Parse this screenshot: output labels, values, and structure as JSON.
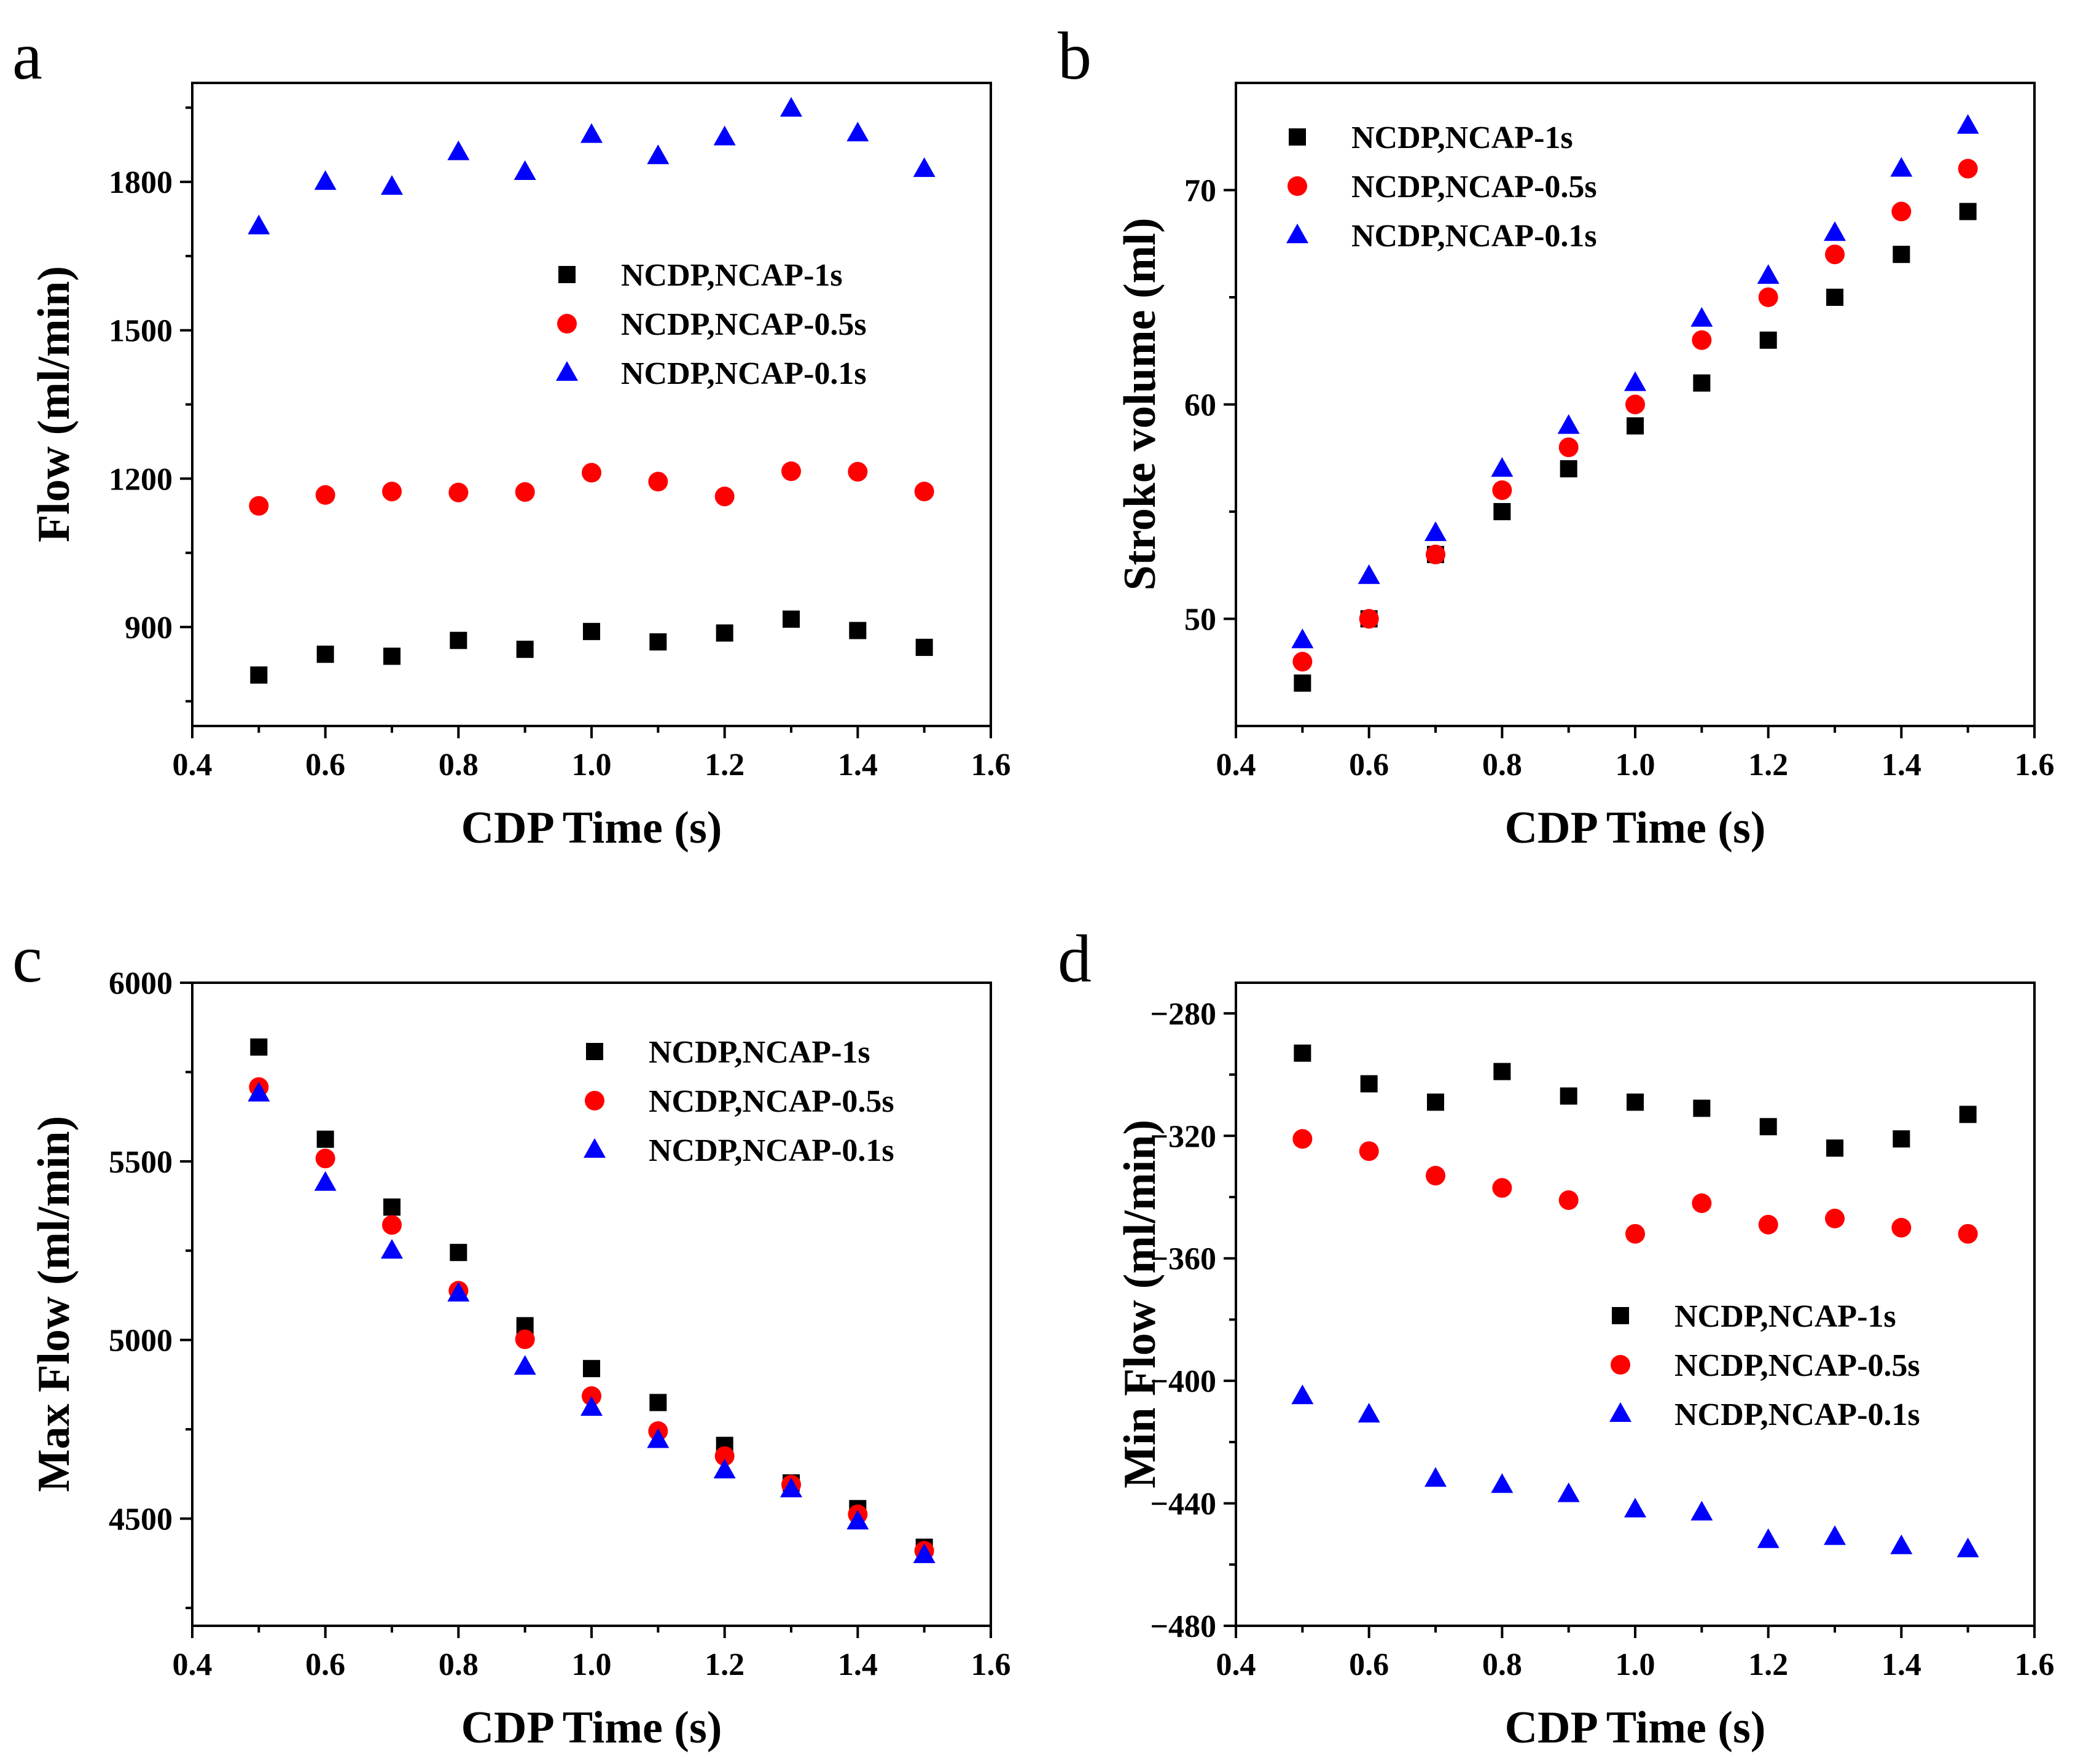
{
  "colors": {
    "series_1s": "#000000",
    "series_05s": "#ff0000",
    "series_01s": "#0000ff"
  },
  "chart_data": [
    {
      "panel": "a",
      "type": "scatter",
      "xlabel": "CDP Time (s)",
      "ylabel": "Flow (ml/min)",
      "xlim": [
        0.4,
        1.6
      ],
      "ylim": [
        700,
        2000
      ],
      "xticks": [
        "0.4",
        "0.6",
        "0.8",
        "1.0",
        "1.2",
        "1.4",
        "1.6"
      ],
      "yticks": [
        "900",
        "1200",
        "1500",
        "1800"
      ],
      "legend_position": "center-right",
      "x": [
        0.5,
        0.6,
        0.7,
        0.8,
        0.9,
        1.0,
        1.1,
        1.2,
        1.3,
        1.4,
        1.5
      ],
      "series": [
        {
          "name": "NCDP,NCAP-1s",
          "marker": "square",
          "color": "#000000",
          "values": [
            803,
            845,
            841,
            873,
            855,
            891,
            870,
            888,
            916,
            893,
            859
          ]
        },
        {
          "name": "NCDP,NCAP-0.5s",
          "marker": "circle",
          "color": "#ff0000",
          "values": [
            1145,
            1167,
            1174,
            1172,
            1173,
            1212,
            1194,
            1164,
            1215,
            1214,
            1174
          ]
        },
        {
          "name": "NCDP,NCAP-0.1s",
          "marker": "triangle",
          "color": "#0000ff",
          "values": [
            1710,
            1800,
            1790,
            1860,
            1820,
            1895,
            1852,
            1890,
            1948,
            1898,
            1826
          ]
        }
      ]
    },
    {
      "panel": "b",
      "type": "scatter",
      "xlabel": "CDP Time (s)",
      "ylabel": "Stroke volume (ml)",
      "xlim": [
        0.4,
        1.6
      ],
      "ylim": [
        45,
        75
      ],
      "xticks": [
        "0.4",
        "0.6",
        "0.8",
        "1.0",
        "1.2",
        "1.4",
        "1.6"
      ],
      "yticks": [
        "50",
        "60",
        "70"
      ],
      "legend_position": "top-left",
      "x": [
        0.5,
        0.6,
        0.7,
        0.8,
        0.9,
        1.0,
        1.1,
        1.2,
        1.3,
        1.4,
        1.5
      ],
      "series": [
        {
          "name": "NCDP,NCAP-1s",
          "marker": "square",
          "color": "#000000",
          "values": [
            47,
            50,
            53,
            55,
            57,
            59,
            61,
            63,
            65,
            67,
            69
          ]
        },
        {
          "name": "NCDP,NCAP-0.5s",
          "marker": "circle",
          "color": "#ff0000",
          "values": [
            48,
            50,
            53,
            56,
            58,
            60,
            63,
            65,
            67,
            69,
            71
          ]
        },
        {
          "name": "NCDP,NCAP-0.1s",
          "marker": "triangle",
          "color": "#0000ff",
          "values": [
            49,
            52,
            54,
            57,
            59,
            61,
            64,
            66,
            68,
            71,
            73
          ]
        }
      ]
    },
    {
      "panel": "c",
      "type": "scatter",
      "xlabel": "CDP Time (s)",
      "ylabel": "Max Flow (ml/min)",
      "xlim": [
        0.4,
        1.6
      ],
      "ylim": [
        4200,
        6000
      ],
      "xticks": [
        "0.4",
        "0.6",
        "0.8",
        "1.0",
        "1.2",
        "1.4",
        "1.6"
      ],
      "yticks": [
        "4500",
        "5000",
        "5500",
        "6000"
      ],
      "legend_position": "top-right",
      "x": [
        0.5,
        0.6,
        0.7,
        0.8,
        0.9,
        1.0,
        1.1,
        1.2,
        1.3,
        1.4,
        1.5
      ],
      "series": [
        {
          "name": "NCDP,NCAP-1s",
          "marker": "square",
          "color": "#000000",
          "values": [
            5820,
            5562,
            5372,
            5245,
            5040,
            4920,
            4825,
            4705,
            4600,
            4528,
            4420
          ]
        },
        {
          "name": "NCDP,NCAP-0.5s",
          "marker": "circle",
          "color": "#ff0000",
          "values": [
            5708,
            5508,
            5322,
            5138,
            5002,
            4843,
            4745,
            4675,
            4595,
            4512,
            4410
          ]
        },
        {
          "name": "NCDP,NCAP-0.1s",
          "marker": "triangle",
          "color": "#0000ff",
          "values": [
            5690,
            5440,
            5250,
            5130,
            4925,
            4810,
            4720,
            4635,
            4582,
            4492,
            4398
          ]
        }
      ]
    },
    {
      "panel": "d",
      "type": "scatter",
      "xlabel": "CDP Time (s)",
      "ylabel": "Min Flow (ml/min)",
      "xlim": [
        0.4,
        1.6
      ],
      "ylim": [
        -480,
        -270
      ],
      "xticks": [
        "0.4",
        "0.6",
        "0.8",
        "1.0",
        "1.2",
        "1.4",
        "1.6"
      ],
      "yticks": [
        "−280",
        "−320",
        "−360",
        "−400",
        "−440",
        "−480"
      ],
      "legend_position": "center-right",
      "x": [
        0.5,
        0.6,
        0.7,
        0.8,
        0.9,
        1.0,
        1.1,
        1.2,
        1.3,
        1.4,
        1.5
      ],
      "series": [
        {
          "name": "NCDP,NCAP-1s",
          "marker": "square",
          "color": "#000000",
          "values": [
            -293,
            -303,
            -309,
            -299,
            -307,
            -309,
            -311,
            -317,
            -324,
            -321,
            -313
          ]
        },
        {
          "name": "NCDP,NCAP-0.5s",
          "marker": "circle",
          "color": "#ff0000",
          "values": [
            -321,
            -325,
            -333,
            -337,
            -341,
            -352,
            -342,
            -349,
            -347,
            -350,
            -352
          ]
        },
        {
          "name": "NCDP,NCAP-0.1s",
          "marker": "triangle",
          "color": "#0000ff",
          "values": [
            -405,
            -411,
            -432,
            -434,
            -437,
            -442,
            -443,
            -452,
            -451,
            -454,
            -455
          ]
        }
      ]
    }
  ]
}
